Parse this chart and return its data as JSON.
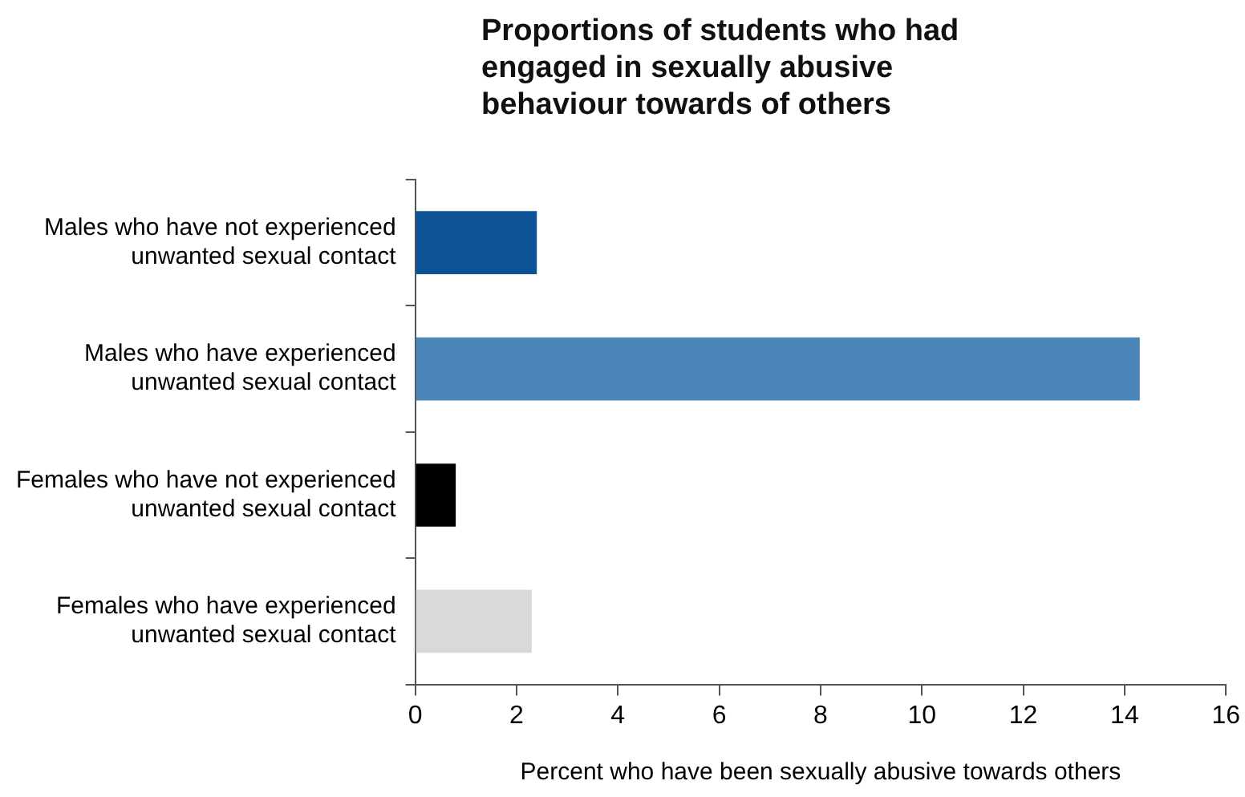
{
  "chart_data": {
    "type": "bar",
    "orientation": "horizontal",
    "title": "Proportions of students who had engaged in sexually abusive behaviour towards of others",
    "xlabel": "Percent who have been sexually abusive towards others",
    "categories": [
      "Males who have not experienced unwanted sexual contact",
      "Males who have experienced unwanted sexual contact",
      "Females who have not experienced unwanted sexual contact",
      "Females who have experienced unwanted sexual contact"
    ],
    "values": [
      2.4,
      14.3,
      0.8,
      2.3
    ],
    "colors": [
      "#0b5394",
      "#4a86b8",
      "#000000",
      "#d9d9d9"
    ],
    "xlim": [
      0,
      16
    ],
    "xticks": [
      0,
      2,
      4,
      6,
      8,
      10,
      12,
      14,
      16
    ],
    "grid": false
  }
}
